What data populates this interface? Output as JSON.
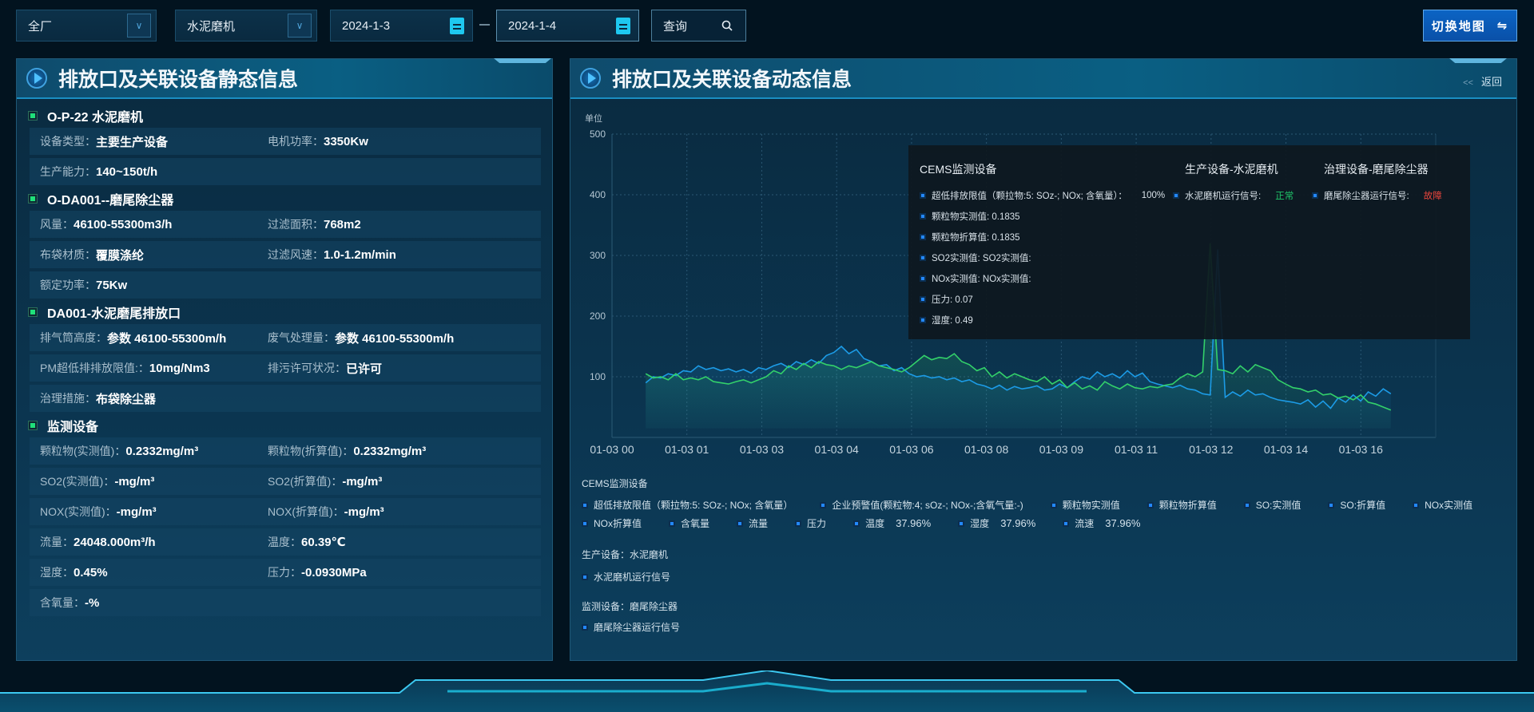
{
  "filters": {
    "area": {
      "value": "全厂"
    },
    "device": {
      "value": "水泥磨机"
    },
    "start_date": "2024-1-3",
    "end_date": "2024-1-4",
    "query_label": "查询",
    "map_button_label": "切换地图",
    "map_button_icon": "⇋"
  },
  "left_panel": {
    "title": "排放口及关联设备静态信息",
    "sections": [
      {
        "title": "O-P-22 水泥磨机",
        "rows": [
          [
            {
              "label": "设备类型：",
              "value": "主要生产设备"
            },
            {
              "label": "电机功率：",
              "value": "3350Kw"
            }
          ],
          [
            {
              "label": "生产能力：",
              "value": "140~150t/h"
            }
          ]
        ]
      },
      {
        "title": "O-DA001--磨尾除尘器",
        "rows": [
          [
            {
              "label": "风量：",
              "value": "46100-55300m3/h"
            },
            {
              "label": "过滤面积：",
              "value": "768m2"
            }
          ],
          [
            {
              "label": "布袋材质：",
              "value": "覆膜涤纶"
            },
            {
              "label": "过滤风速：",
              "value": "1.0-1.2m/min"
            }
          ],
          [
            {
              "label": "额定功率：",
              "value": "75Kw"
            }
          ]
        ]
      },
      {
        "title": "DA001-水泥磨尾排放口",
        "rows": [
          [
            {
              "label": "排气筒高度：",
              "value": "参数 46100-55300m/h"
            },
            {
              "label": "废气处理量：",
              "value": "参数 46100-55300m/h"
            }
          ],
          [
            {
              "label": "PM超低排排放限值:：",
              "value": "10mg/Nm3"
            },
            {
              "label": "排污许可状况：",
              "value": "已许可"
            }
          ],
          [
            {
              "label": "治理措施：",
              "value": "布袋除尘器"
            }
          ]
        ]
      },
      {
        "title": "监测设备",
        "rows": [
          [
            {
              "label": "颗粒物(实测值)：",
              "value": "0.2332mg/m³"
            },
            {
              "label": "颗粒物(折算值)：",
              "value": "0.2332mg/m³"
            }
          ],
          [
            {
              "label": "SO2(实测值)：",
              "value": "-mg/m³"
            },
            {
              "label": "SO2(折算值)：",
              "value": "-mg/m³"
            }
          ],
          [
            {
              "label": "NOX(实测值)：",
              "value": "-mg/m³"
            },
            {
              "label": "NOX(折算值)：",
              "value": "-mg/m³"
            }
          ],
          [
            {
              "label": "流量：",
              "value": "24048.000m³/h"
            },
            {
              "label": "温度：",
              "value": "60.39℃"
            }
          ],
          [
            {
              "label": "湿度：",
              "value": "0.45%"
            },
            {
              "label": "压力：",
              "value": "-0.0930MPa"
            }
          ],
          [
            {
              "label": "含氧量：",
              "value": "-%"
            }
          ]
        ]
      }
    ]
  },
  "right_panel": {
    "title": "排放口及关联设备动态信息",
    "back_label": "返回",
    "tooltip": {
      "cems_title": "CEMS监测设备",
      "cems_items": [
        "超低排放限值（颗拉物:5: SOz-; NOx; 含氧量）：",
        "颗粒物实测值: 0.1835",
        "颗粒物折算值: 0.1835",
        "SO2实测值: SO2实测值:",
        "NOx实测值: NOx实测值:",
        "压力: 0.07",
        "湿度: 0.49"
      ],
      "cems_limit_value": "100%",
      "prod_title": "生产设备-水泥磨机",
      "prod_item": "水泥磨机运行信号:",
      "prod_status": "正常",
      "treat_title": "治理设备-磨尾除尘器",
      "treat_item": "磨尾除尘器运行信号:",
      "treat_status": "故障"
    },
    "legend": {
      "cems_title": "CEMS监测设备",
      "row1": [
        "超低排放限值（颗拉物:5: SOz-; NOx; 含氧量）",
        "企业预警值(颗粒物:4; sOz-; NOx-;含氧气量:-)",
        "颗粒物实测值",
        "颗粒物折算值",
        "SO:实测值",
        "SO:折算值",
        "NOx实测值"
      ],
      "row2": [
        {
          "label": "NOx折算值"
        },
        {
          "label": "含氧量"
        },
        {
          "label": "流量"
        },
        {
          "label": "压力"
        },
        {
          "label": "温度",
          "pct": "37.96%"
        },
        {
          "label": "湿度",
          "pct": "37.96%"
        },
        {
          "label": "流速",
          "pct": "37.96%"
        }
      ],
      "prod_title": "生产设备：水泥磨机",
      "prod_item": "水泥磨机运行信号",
      "monitor_title": "监测设备：磨尾除尘器",
      "monitor_item": "磨尾除尘器运行信号"
    }
  },
  "colors": {
    "blue_series": "#1c9be6",
    "green_series": "#33d16a",
    "normal": "#1fc86a",
    "fault": "#e8453c",
    "accent": "#0b64c4"
  },
  "chart_data": {
    "type": "area",
    "ylabel": "单位",
    "ylim": [
      0,
      500
    ],
    "yticks": [
      100,
      200,
      300,
      400,
      500
    ],
    "xtick_labels": [
      "01-03 00",
      "01-03 01",
      "01-03 03",
      "01-03 04",
      "01-03 06",
      "01-03 08",
      "01-03 09",
      "01-03 11",
      "01-03 12",
      "01-03 14",
      "01-03 16"
    ],
    "grid": true,
    "series": [
      {
        "color": "#1c9be6",
        "values": [
          90,
          100,
          98,
          105,
          102,
          110,
          108,
          118,
          112,
          115,
          110,
          113,
          108,
          112,
          106,
          115,
          112,
          118,
          122,
          115,
          125,
          120,
          128,
          122,
          135,
          140,
          150,
          138,
          145,
          130,
          125,
          118,
          120,
          110,
          115,
          105,
          100,
          102,
          98,
          100,
          95,
          98,
          92,
          95,
          88,
          85,
          80,
          86,
          78,
          84,
          80,
          82,
          85,
          78,
          80,
          88,
          82,
          92,
          100,
          96,
          108,
          100,
          105,
          98,
          110,
          100,
          106,
          92,
          88,
          85,
          82,
          86,
          80,
          78,
          72,
          70,
          310,
          66,
          75,
          68,
          78,
          70,
          72,
          66,
          62,
          60,
          58,
          55,
          62,
          50,
          60,
          48,
          65,
          58,
          70,
          60,
          75,
          68,
          80,
          72
        ]
      },
      {
        "color": "#33d16a",
        "values": [
          105,
          98,
          100,
          95,
          105,
          95,
          98,
          95,
          100,
          92,
          90,
          88,
          92,
          95,
          90,
          95,
          100,
          110,
          105,
          118,
          112,
          122,
          115,
          125,
          120,
          118,
          112,
          118,
          115,
          120,
          125,
          118,
          115,
          112,
          108,
          115,
          125,
          135,
          128,
          132,
          130,
          138,
          125,
          120,
          110,
          115,
          100,
          108,
          98,
          105,
          100,
          95,
          92,
          100,
          88,
          95,
          82,
          90,
          80,
          85,
          78,
          92,
          85,
          80,
          88,
          82,
          80,
          84,
          82,
          86,
          88,
          98,
          105,
          100,
          108,
          320,
          112,
          110,
          105,
          118,
          108,
          120,
          115,
          110,
          95,
          88,
          82,
          80,
          75,
          78,
          70,
          72,
          65,
          68,
          62,
          70,
          58,
          55,
          50,
          45
        ]
      }
    ]
  }
}
